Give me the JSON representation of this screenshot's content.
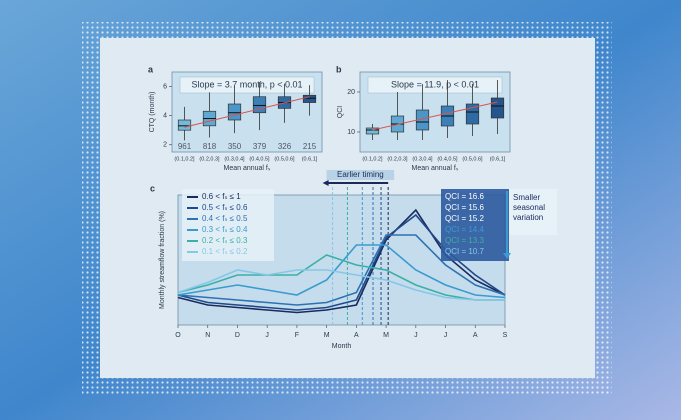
{
  "chart_data": [
    {
      "type": "box",
      "panel": "a",
      "title": "Slope = 3.7 month, p < 0.01",
      "ylabel": "CTQ (month)",
      "xlabel": "Mean annual fₛ",
      "categories": [
        "(0.1,0.2]",
        "(0.2,0.3]",
        "(0.3,0.4]",
        "(0.4,0.5]",
        "(0.5,0.6]",
        "(0.6,1]"
      ],
      "counts": [
        961,
        818,
        350,
        379,
        326,
        215
      ],
      "boxes": [
        {
          "whisker_low": 2.3,
          "q1": 3.0,
          "median": 3.3,
          "q3": 3.7,
          "whisker_high": 4.6
        },
        {
          "whisker_low": 2.5,
          "q1": 3.3,
          "median": 3.8,
          "q3": 4.3,
          "whisker_high": 5.6
        },
        {
          "whisker_low": 2.8,
          "q1": 3.7,
          "median": 4.2,
          "q3": 4.8,
          "whisker_high": 6.0
        },
        {
          "whisker_low": 3.0,
          "q1": 4.2,
          "median": 4.7,
          "q3": 5.3,
          "whisker_high": 6.3
        },
        {
          "whisker_low": 3.5,
          "q1": 4.5,
          "median": 4.9,
          "q3": 5.3,
          "whisker_high": 6.2
        },
        {
          "whisker_low": 4.0,
          "q1": 4.9,
          "median": 5.2,
          "q3": 5.4,
          "whisker_high": 6.1
        }
      ],
      "colors": [
        "#74b8da",
        "#5ea8d2",
        "#4c95c7",
        "#3c80b8",
        "#2e6aa3",
        "#24558c"
      ],
      "trend": [
        3.2,
        5.3
      ],
      "trend_color": "#d9534f",
      "ylim": [
        1.5,
        7
      ],
      "yticks": [
        2,
        4,
        6
      ]
    },
    {
      "type": "box",
      "panel": "b",
      "title": "Slope = 11.9, p < 0.01",
      "ylabel": "QCI",
      "xlabel": "Mean annual fₛ",
      "categories": [
        "(0.1,0.2]",
        "(0.2,0.3]",
        "(0.3,0.4]",
        "(0.4,0.5]",
        "(0.5,0.6]",
        "(0.6,1]"
      ],
      "boxes": [
        {
          "whisker_low": 8,
          "q1": 9.5,
          "median": 10.5,
          "q3": 11,
          "whisker_high": 12
        },
        {
          "whisker_low": 8,
          "q1": 10,
          "median": 12,
          "q3": 14,
          "whisker_high": 20
        },
        {
          "whisker_low": 8,
          "q1": 10.5,
          "median": 12.5,
          "q3": 15.5,
          "whisker_high": 22
        },
        {
          "whisker_low": 8.5,
          "q1": 11.5,
          "median": 14,
          "q3": 16.5,
          "whisker_high": 23
        },
        {
          "whisker_low": 9,
          "q1": 12,
          "median": 15,
          "q3": 17,
          "whisker_high": 22
        },
        {
          "whisker_low": 9.5,
          "q1": 13.5,
          "median": 16.5,
          "q3": 18.5,
          "whisker_high": 23
        }
      ],
      "colors": [
        "#74b8da",
        "#5ea8d2",
        "#4c95c7",
        "#3c80b8",
        "#2e6aa3",
        "#24558c"
      ],
      "trend": [
        10.5,
        17.5
      ],
      "trend_color": "#d9534f",
      "ylim": [
        5,
        25
      ],
      "yticks": [
        10,
        20
      ]
    },
    {
      "type": "line",
      "panel": "c",
      "ylabel": "Monthly streamflow fraction (%)",
      "xlabel": "Month",
      "categories": [
        "O",
        "N",
        "D",
        "J",
        "F",
        "M",
        "A",
        "M",
        "J",
        "J",
        "A",
        "S"
      ],
      "ylim": [
        0,
        26
      ],
      "series": [
        {
          "name": "0.6 < fₛ ≤ 1",
          "color": "#1b2a5c",
          "values": [
            5.5,
            4,
            3.5,
            3,
            2.5,
            3,
            4,
            17,
            23,
            14,
            9,
            6
          ],
          "timing": 7.07
        },
        {
          "name": "0.5 < fₛ ≤ 0.6",
          "color": "#20498a",
          "values": [
            6,
            4.5,
            4,
            3.5,
            3,
            3.5,
            5,
            17.5,
            22,
            15,
            10,
            6
          ],
          "timing": 6.83
        },
        {
          "name": "0.4 < fₛ ≤ 0.5",
          "color": "#2d72b2",
          "values": [
            6,
            5.5,
            5,
            4.5,
            4,
            4.5,
            6.5,
            18,
            18,
            12,
            8,
            6
          ],
          "timing": 6.56
        },
        {
          "name": "0.3 < fₛ ≤ 0.4",
          "color": "#3a9bd0",
          "values": [
            6,
            7,
            8,
            7,
            6,
            9,
            16,
            16,
            11,
            8,
            6,
            5.5
          ],
          "timing": 6.2
        },
        {
          "name": "0.2 < fₛ ≤ 0.3",
          "color": "#3bb0a6",
          "values": [
            6.5,
            8,
            10,
            10,
            10,
            14,
            12,
            11,
            8,
            6,
            5,
            5
          ],
          "timing": 5.7
        },
        {
          "name": "0.1 < fₛ ≤ 0.2",
          "color": "#86c7e6",
          "values": [
            6.5,
            8.5,
            11,
            10,
            11,
            11,
            10,
            9,
            7,
            5.5,
            5,
            5
          ],
          "timing": 5.2
        }
      ],
      "qci_labels": [
        "QCI = 16.6",
        "QCI = 15.6",
        "QCI = 15.2",
        "QCI = 14.4",
        "QCI = 13.3",
        "QCI = 10.7"
      ],
      "timing_annotation": "Earlier timing",
      "variation_annotation": [
        "Smaller",
        "seasonal",
        "variation"
      ]
    }
  ]
}
